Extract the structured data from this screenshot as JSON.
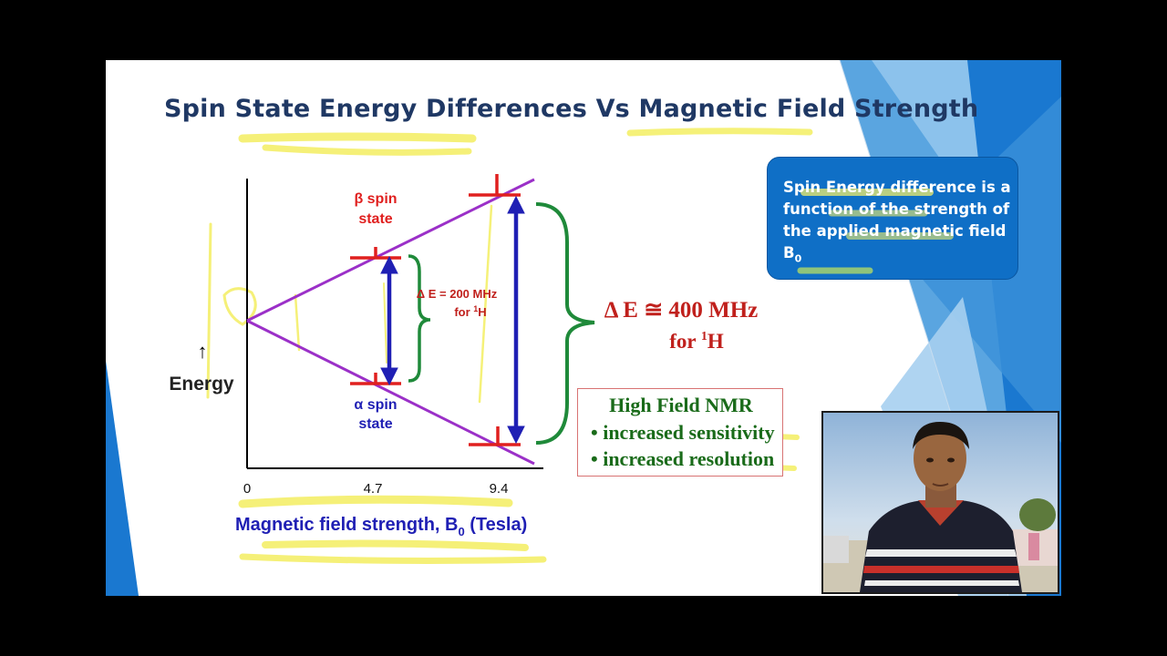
{
  "slide": {
    "title": "Spin State Energy Differences Vs Magnetic Field Strength"
  },
  "diagram": {
    "y_axis_label": "Energy",
    "x_axis_label": "Magnetic field strength, B",
    "x_axis_subscript": "0",
    "x_axis_unit": " (Tesla)",
    "x_ticks": [
      "0",
      "4.7",
      "9.4"
    ],
    "beta_label_line1": "β spin",
    "beta_label_line2": "state",
    "alpha_label_line1": "α spin",
    "alpha_label_line2": "state",
    "delta_small_line1": "Δ E = 200 MHz",
    "delta_small_line2_prefix": "for ",
    "delta_small_line2_sup": "1",
    "delta_small_line2_suffix": "H",
    "delta_large_line1": "Δ E ≅ 400 MHz",
    "delta_large_line2_prefix": "for ",
    "delta_large_line2_sup": "1",
    "delta_large_line2_suffix": "H",
    "colors": {
      "lines": "#9b30c8",
      "arrows": "#1f1fb4",
      "red_marks": "#e0201f",
      "braces": "#1f8a3a",
      "annotation_red": "#c0201c",
      "highlight": "#f4ef6a"
    }
  },
  "callout": {
    "text": "Spin Energy difference is a function of the strength of the applied magnetic field B",
    "subscript": "0"
  },
  "nmr_box": {
    "title": "High Field NMR",
    "items": [
      "• increased sensitivity",
      "• increased resolution"
    ]
  },
  "webcam": {
    "description_icon": "person-icon"
  }
}
